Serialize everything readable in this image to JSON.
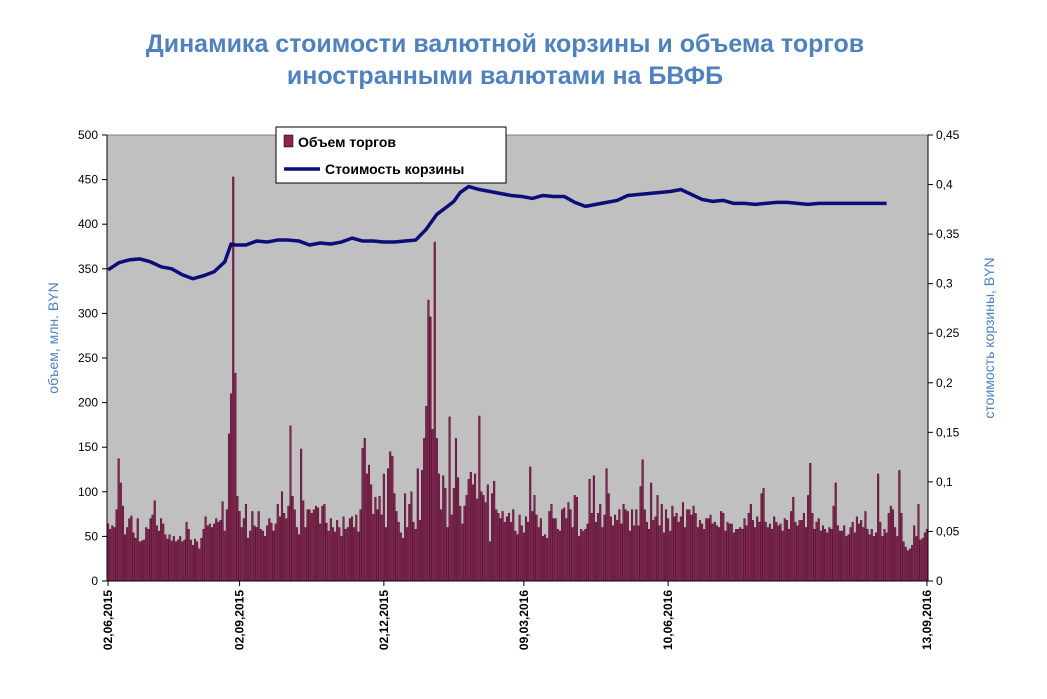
{
  "chart_data": {
    "type": "bar",
    "title_line1": "Динамика стоимости валютной корзины и объема торгов",
    "title_line2": "иностранными валютами на БВФБ",
    "ylabel_left": "объем, млн. BYN",
    "ylabel_right": "стоимость корзины, BYN",
    "ylim_left": [
      0,
      500
    ],
    "ylim_right": [
      0,
      0.45
    ],
    "yticks_left": [
      "0",
      "50",
      "100",
      "150",
      "200",
      "250",
      "300",
      "350",
      "400",
      "450",
      "500"
    ],
    "yticks_right": [
      "0",
      "0,05",
      "0,1",
      "0,15",
      "0,2",
      "0,25",
      "0,3",
      "0,35",
      "0,4",
      "0,45"
    ],
    "x_tick_labels": [
      "02,06,2015",
      "02,09,2015",
      "02,12,2015",
      "09,03,2016",
      "10,06,2016",
      "13,09,2016"
    ],
    "grid": false,
    "legend_position": "top-left",
    "series": [
      {
        "name": "Объем торгов",
        "type": "bar",
        "axis": "left",
        "color": "#8b2252",
        "values": [
          64,
          58,
          62,
          60,
          80,
          137,
          110,
          84,
          52,
          60,
          70,
          73,
          54,
          48,
          70,
          44,
          45,
          46,
          60,
          58,
          70,
          74,
          90,
          62,
          56,
          70,
          64,
          52,
          47,
          52,
          45,
          50,
          44,
          46,
          50,
          44,
          46,
          66,
          58,
          46,
          40,
          47,
          44,
          36,
          48,
          58,
          72,
          62,
          64,
          60,
          64,
          70,
          66,
          68,
          89,
          56,
          80,
          165,
          210,
          453,
          233,
          95,
          78,
          60,
          70,
          86,
          48,
          56,
          78,
          62,
          60,
          78,
          58,
          56,
          50,
          62,
          70,
          65,
          56,
          64,
          86,
          72,
          100,
          76,
          70,
          84,
          174,
          95,
          80,
          60,
          52,
          148,
          90,
          60,
          80,
          80,
          76,
          80,
          84,
          82,
          64,
          84,
          86,
          65,
          56,
          70,
          60,
          55,
          68,
          60,
          50,
          72,
          58,
          60,
          70,
          72,
          60,
          74,
          55,
          80,
          149,
          160,
          120,
          130,
          108,
          75,
          94,
          80,
          95,
          74,
          120,
          60,
          126,
          145,
          140,
          98,
          78,
          66,
          54,
          48,
          98,
          60,
          86,
          100,
          66,
          58,
          126,
          68,
          124,
          160,
          196,
          315,
          296,
          170,
          380,
          160,
          120,
          80,
          118,
          104,
          60,
          184,
          74,
          104,
          160,
          116,
          84,
          64,
          84,
          96,
          114,
          122,
          108,
          120,
          92,
          185,
          100,
          96,
          88,
          108,
          44,
          98,
          112,
          80,
          76,
          70,
          78,
          66,
          72,
          76,
          66,
          80,
          56,
          52,
          74,
          62,
          54,
          72,
          66,
          128,
          78,
          96,
          74,
          60,
          70,
          50,
          52,
          48,
          78,
          86,
          70,
          70,
          58,
          56,
          80,
          82,
          70,
          88,
          80,
          60,
          96,
          94,
          50,
          58,
          56,
          58,
          64,
          114,
          76,
          118,
          66,
          76,
          86,
          60,
          74,
          126,
          98,
          72,
          62,
          74,
          68,
          80,
          64,
          86,
          80,
          78,
          56,
          80,
          62,
          80,
          62,
          106,
          136,
          80,
          66,
          58,
          110,
          68,
          72,
          96,
          62,
          86,
          54,
          80,
          70,
          56,
          84,
          72,
          76,
          66,
          72,
          88,
          60,
          80,
          80,
          74,
          84,
          76,
          60,
          68,
          64,
          58,
          70,
          70,
          74,
          64,
          66,
          62,
          60,
          78,
          76,
          56,
          66,
          64,
          64,
          54,
          58,
          58,
          60,
          58,
          70,
          62,
          76,
          86,
          68,
          60,
          72,
          66,
          98,
          104,
          66,
          60,
          64,
          58,
          72,
          66,
          62,
          64,
          56,
          70,
          68,
          58,
          78,
          94,
          66,
          62,
          68,
          68,
          76,
          60,
          96,
          132,
          76,
          58,
          66,
          70,
          56,
          62,
          58,
          54,
          60,
          58,
          84,
          110,
          62,
          56,
          56,
          62,
          50,
          52,
          60,
          66,
          54,
          72,
          64,
          68,
          60,
          78,
          58,
          52,
          58,
          50,
          54,
          120,
          66,
          50,
          58,
          54,
          76,
          84,
          80,
          60,
          50,
          124,
          76,
          44,
          38,
          34,
          36,
          40,
          62,
          50,
          86,
          46,
          48,
          54,
          58
        ]
      },
      {
        "name": "Стоимость корзины",
        "type": "line",
        "axis": "right",
        "color": "#0d0d7a",
        "x_index": [
          0,
          5,
          10,
          15,
          20,
          25,
          30,
          35,
          40,
          45,
          50,
          55,
          58,
          60,
          65,
          70,
          75,
          80,
          85,
          90,
          95,
          100,
          105,
          110,
          115,
          120,
          125,
          130,
          135,
          140,
          145,
          150,
          155,
          160,
          163,
          166,
          170,
          175,
          180,
          185,
          190,
          195,
          200,
          205,
          210,
          215,
          220,
          225,
          230,
          235,
          240,
          245,
          250,
          255,
          260,
          265,
          270,
          275,
          280,
          285,
          290,
          295,
          300,
          305,
          310,
          315,
          320,
          325,
          330,
          335,
          340,
          345,
          350,
          355,
          360,
          365,
          367
        ],
        "values": [
          0.314,
          0.321,
          0.324,
          0.325,
          0.322,
          0.317,
          0.315,
          0.309,
          0.305,
          0.308,
          0.312,
          0.322,
          0.34,
          0.339,
          0.339,
          0.343,
          0.342,
          0.344,
          0.344,
          0.343,
          0.339,
          0.341,
          0.34,
          0.342,
          0.346,
          0.343,
          0.343,
          0.342,
          0.342,
          0.343,
          0.344,
          0.355,
          0.37,
          0.378,
          0.383,
          0.392,
          0.398,
          0.395,
          0.393,
          0.391,
          0.389,
          0.388,
          0.386,
          0.389,
          0.388,
          0.388,
          0.382,
          0.378,
          0.38,
          0.382,
          0.384,
          0.389,
          0.39,
          0.391,
          0.392,
          0.393,
          0.395,
          0.39,
          0.385,
          0.383,
          0.384,
          0.381,
          0.381,
          0.38,
          0.381,
          0.382,
          0.382,
          0.381,
          0.38,
          0.381,
          0.381,
          0.381,
          0.381,
          0.381,
          0.381,
          0.381,
          0.381
        ]
      }
    ]
  }
}
